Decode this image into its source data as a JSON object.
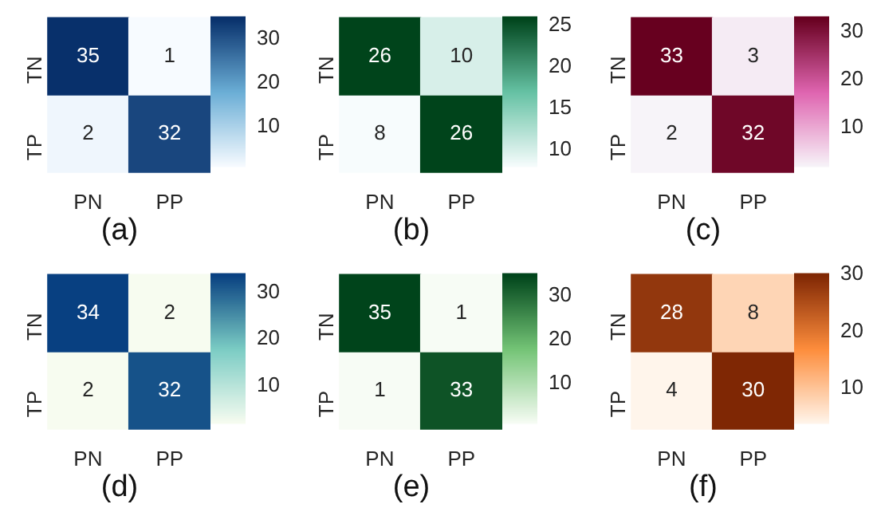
{
  "chart_data": [
    {
      "type": "heatmap",
      "title": "(a)",
      "categories": [
        "PN",
        "PP"
      ],
      "y_categories": [
        "TN",
        "TP"
      ],
      "cells": [
        [
          35,
          1
        ],
        [
          2,
          32
        ]
      ],
      "clim": [
        1,
        35
      ],
      "cticks": [
        10,
        20,
        30
      ],
      "colors": [
        "#f7fbff",
        "#6baed6",
        "#08306b"
      ],
      "data_labels": true
    },
    {
      "type": "heatmap",
      "title": "(b)",
      "categories": [
        "PN",
        "PP"
      ],
      "y_categories": [
        "TN",
        "TP"
      ],
      "cells": [
        [
          26,
          10
        ],
        [
          8,
          26
        ]
      ],
      "clim": [
        8,
        26
      ],
      "cticks": [
        10,
        15,
        20,
        25
      ],
      "colors": [
        "#f7fcfd",
        "#66c2a4",
        "#00441b"
      ],
      "data_labels": true
    },
    {
      "type": "heatmap",
      "title": "(c)",
      "categories": [
        "PN",
        "PP"
      ],
      "y_categories": [
        "TN",
        "TP"
      ],
      "cells": [
        [
          33,
          3
        ],
        [
          2,
          32
        ]
      ],
      "clim": [
        2,
        33
      ],
      "cticks": [
        10,
        20,
        30
      ],
      "colors": [
        "#f7f4f9",
        "#df65b0",
        "#67001f"
      ],
      "data_labels": true
    },
    {
      "type": "heatmap",
      "title": "(d)",
      "categories": [
        "PN",
        "PP"
      ],
      "y_categories": [
        "TN",
        "TP"
      ],
      "cells": [
        [
          34,
          2
        ],
        [
          2,
          32
        ]
      ],
      "clim": [
        2,
        34
      ],
      "cticks": [
        10,
        20,
        30
      ],
      "colors": [
        "#f7fcf0",
        "#7bccc4",
        "#084081"
      ],
      "data_labels": true
    },
    {
      "type": "heatmap",
      "title": "(e)",
      "categories": [
        "PN",
        "PP"
      ],
      "y_categories": [
        "TN",
        "TP"
      ],
      "cells": [
        [
          35,
          1
        ],
        [
          1,
          33
        ]
      ],
      "clim": [
        1,
        35
      ],
      "cticks": [
        10,
        20,
        30
      ],
      "colors": [
        "#f7fcf5",
        "#74c476",
        "#00441b"
      ],
      "data_labels": true
    },
    {
      "type": "heatmap",
      "title": "(f)",
      "categories": [
        "PN",
        "PP"
      ],
      "y_categories": [
        "TN",
        "TP"
      ],
      "cells": [
        [
          28,
          8
        ],
        [
          4,
          30
        ]
      ],
      "clim": [
        4,
        30
      ],
      "cticks": [
        10,
        20,
        30
      ],
      "colors": [
        "#fff5eb",
        "#fd8d3c",
        "#7f2704"
      ],
      "data_labels": true
    }
  ]
}
